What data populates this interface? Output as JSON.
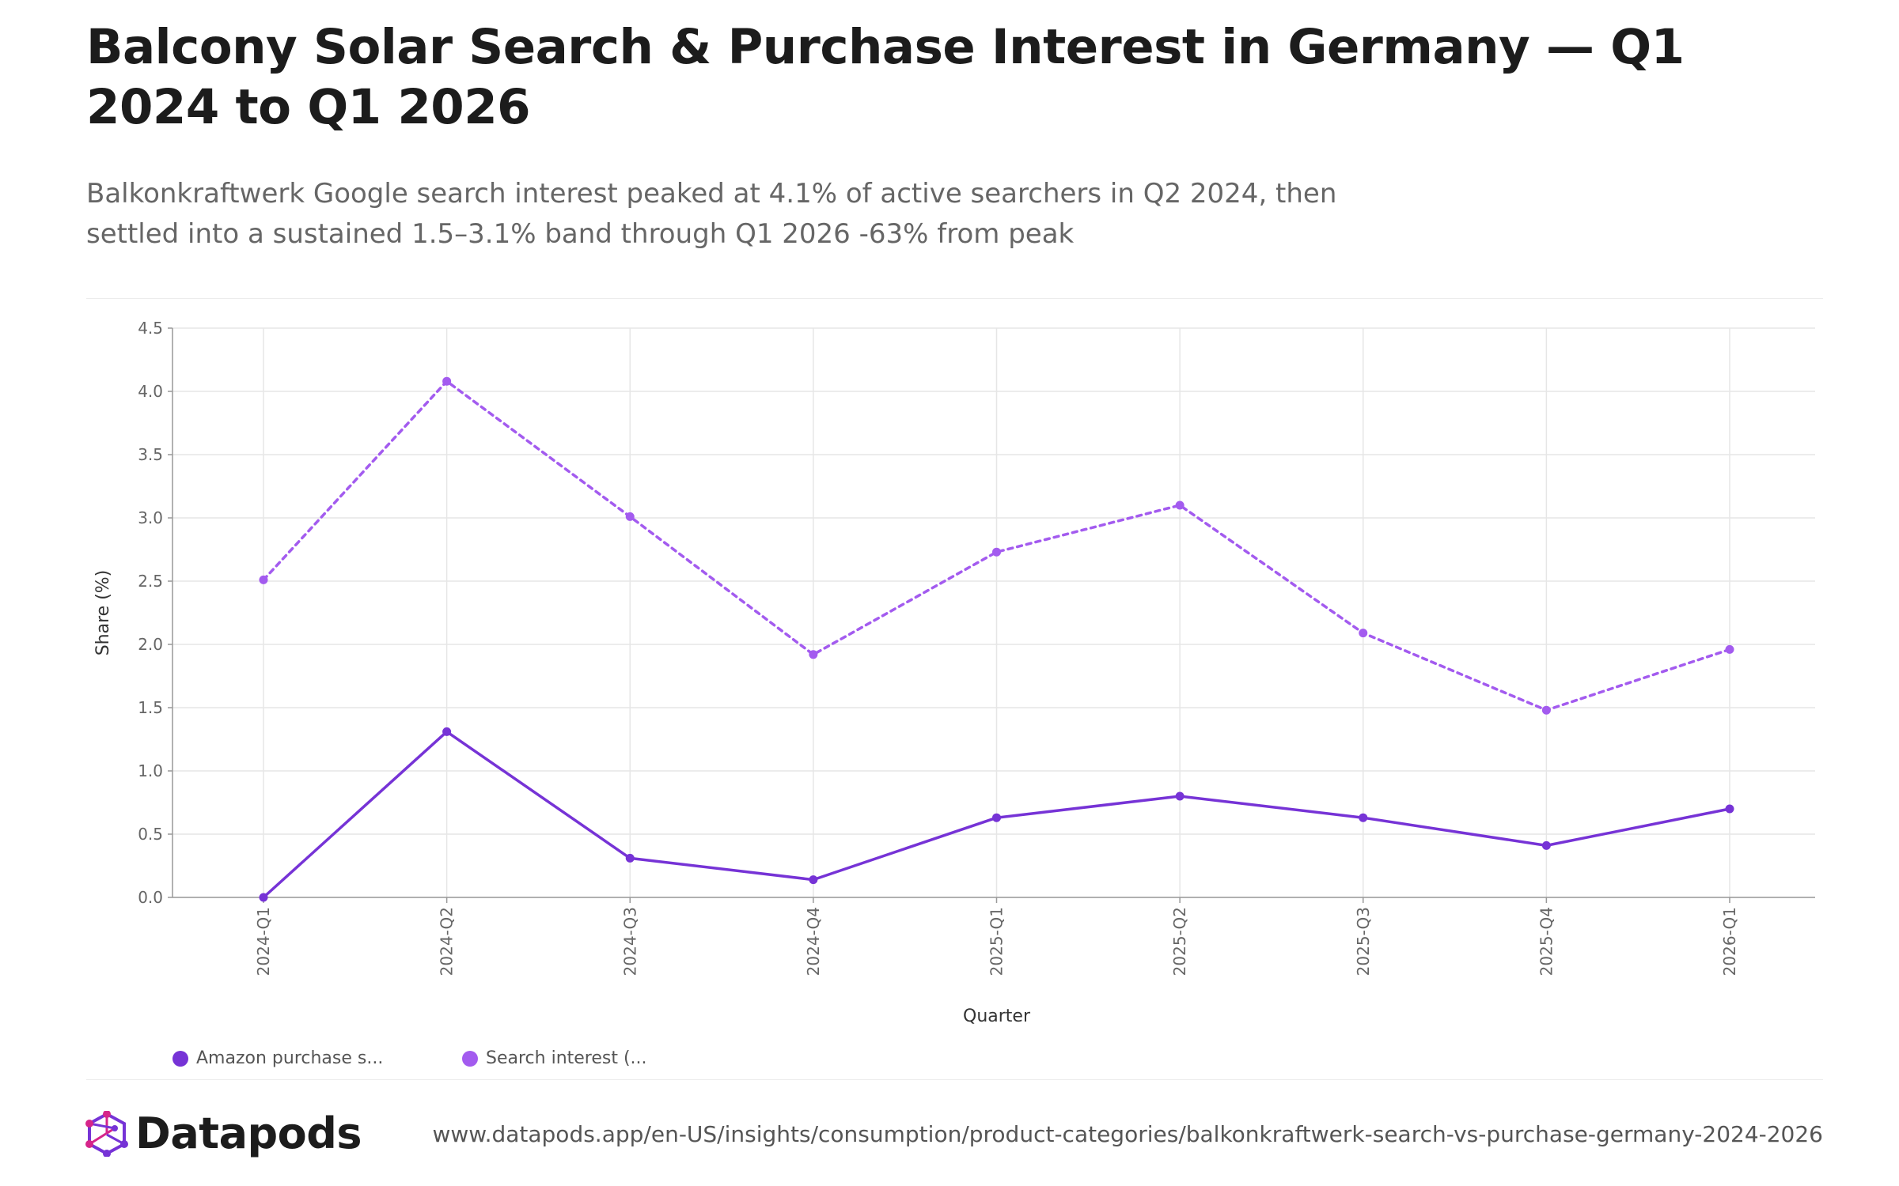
{
  "header": {
    "title": "Balcony Solar Search & Purchase Interest in Germany — Q1 2024 to Q1 2026",
    "subtitle": "Balkonkraftwerk Google search interest peaked at 4.1% of active searchers in Q2 2024, then settled into a sustained 1.5–3.1% band through Q1 2026 -63% from peak"
  },
  "chart_data": {
    "type": "line",
    "categories": [
      "2024-Q1",
      "2024-Q2",
      "2024-Q3",
      "2024-Q4",
      "2025-Q1",
      "2025-Q2",
      "2025-Q3",
      "2025-Q4",
      "2026-Q1"
    ],
    "series": [
      {
        "name": "Amazon purchase s...",
        "values": [
          0.0,
          1.31,
          0.31,
          0.14,
          0.63,
          0.8,
          0.63,
          0.41,
          0.7
        ],
        "color": "#7633d6",
        "style": "solid"
      },
      {
        "name": "Search interest (...",
        "values": [
          2.51,
          4.08,
          3.01,
          1.92,
          2.73,
          3.1,
          2.09,
          1.48,
          1.96
        ],
        "color": "#a35bef",
        "style": "dashed"
      }
    ],
    "xlabel": "Quarter",
    "ylabel": "Share (%)",
    "ylim": [
      0,
      4.5
    ],
    "yticks": [
      "0.0",
      "0.5",
      "1.0",
      "1.5",
      "2.0",
      "2.5",
      "3.0",
      "3.5",
      "4.0",
      "4.5"
    ],
    "grid": true,
    "legend_position": "bottom-left"
  },
  "legend": {
    "items": [
      {
        "label": "Amazon purchase s...",
        "color": "#7633d6"
      },
      {
        "label": "Search interest (...",
        "color": "#a35bef"
      }
    ]
  },
  "footer": {
    "brand": "Datapods",
    "url": "www.datapods.app/en-US/insights/consumption/product-categories/balkonkraftwerk-search-vs-purchase-germany-2024-2026",
    "logo_colors": [
      "#d6258a",
      "#7633d6"
    ]
  }
}
